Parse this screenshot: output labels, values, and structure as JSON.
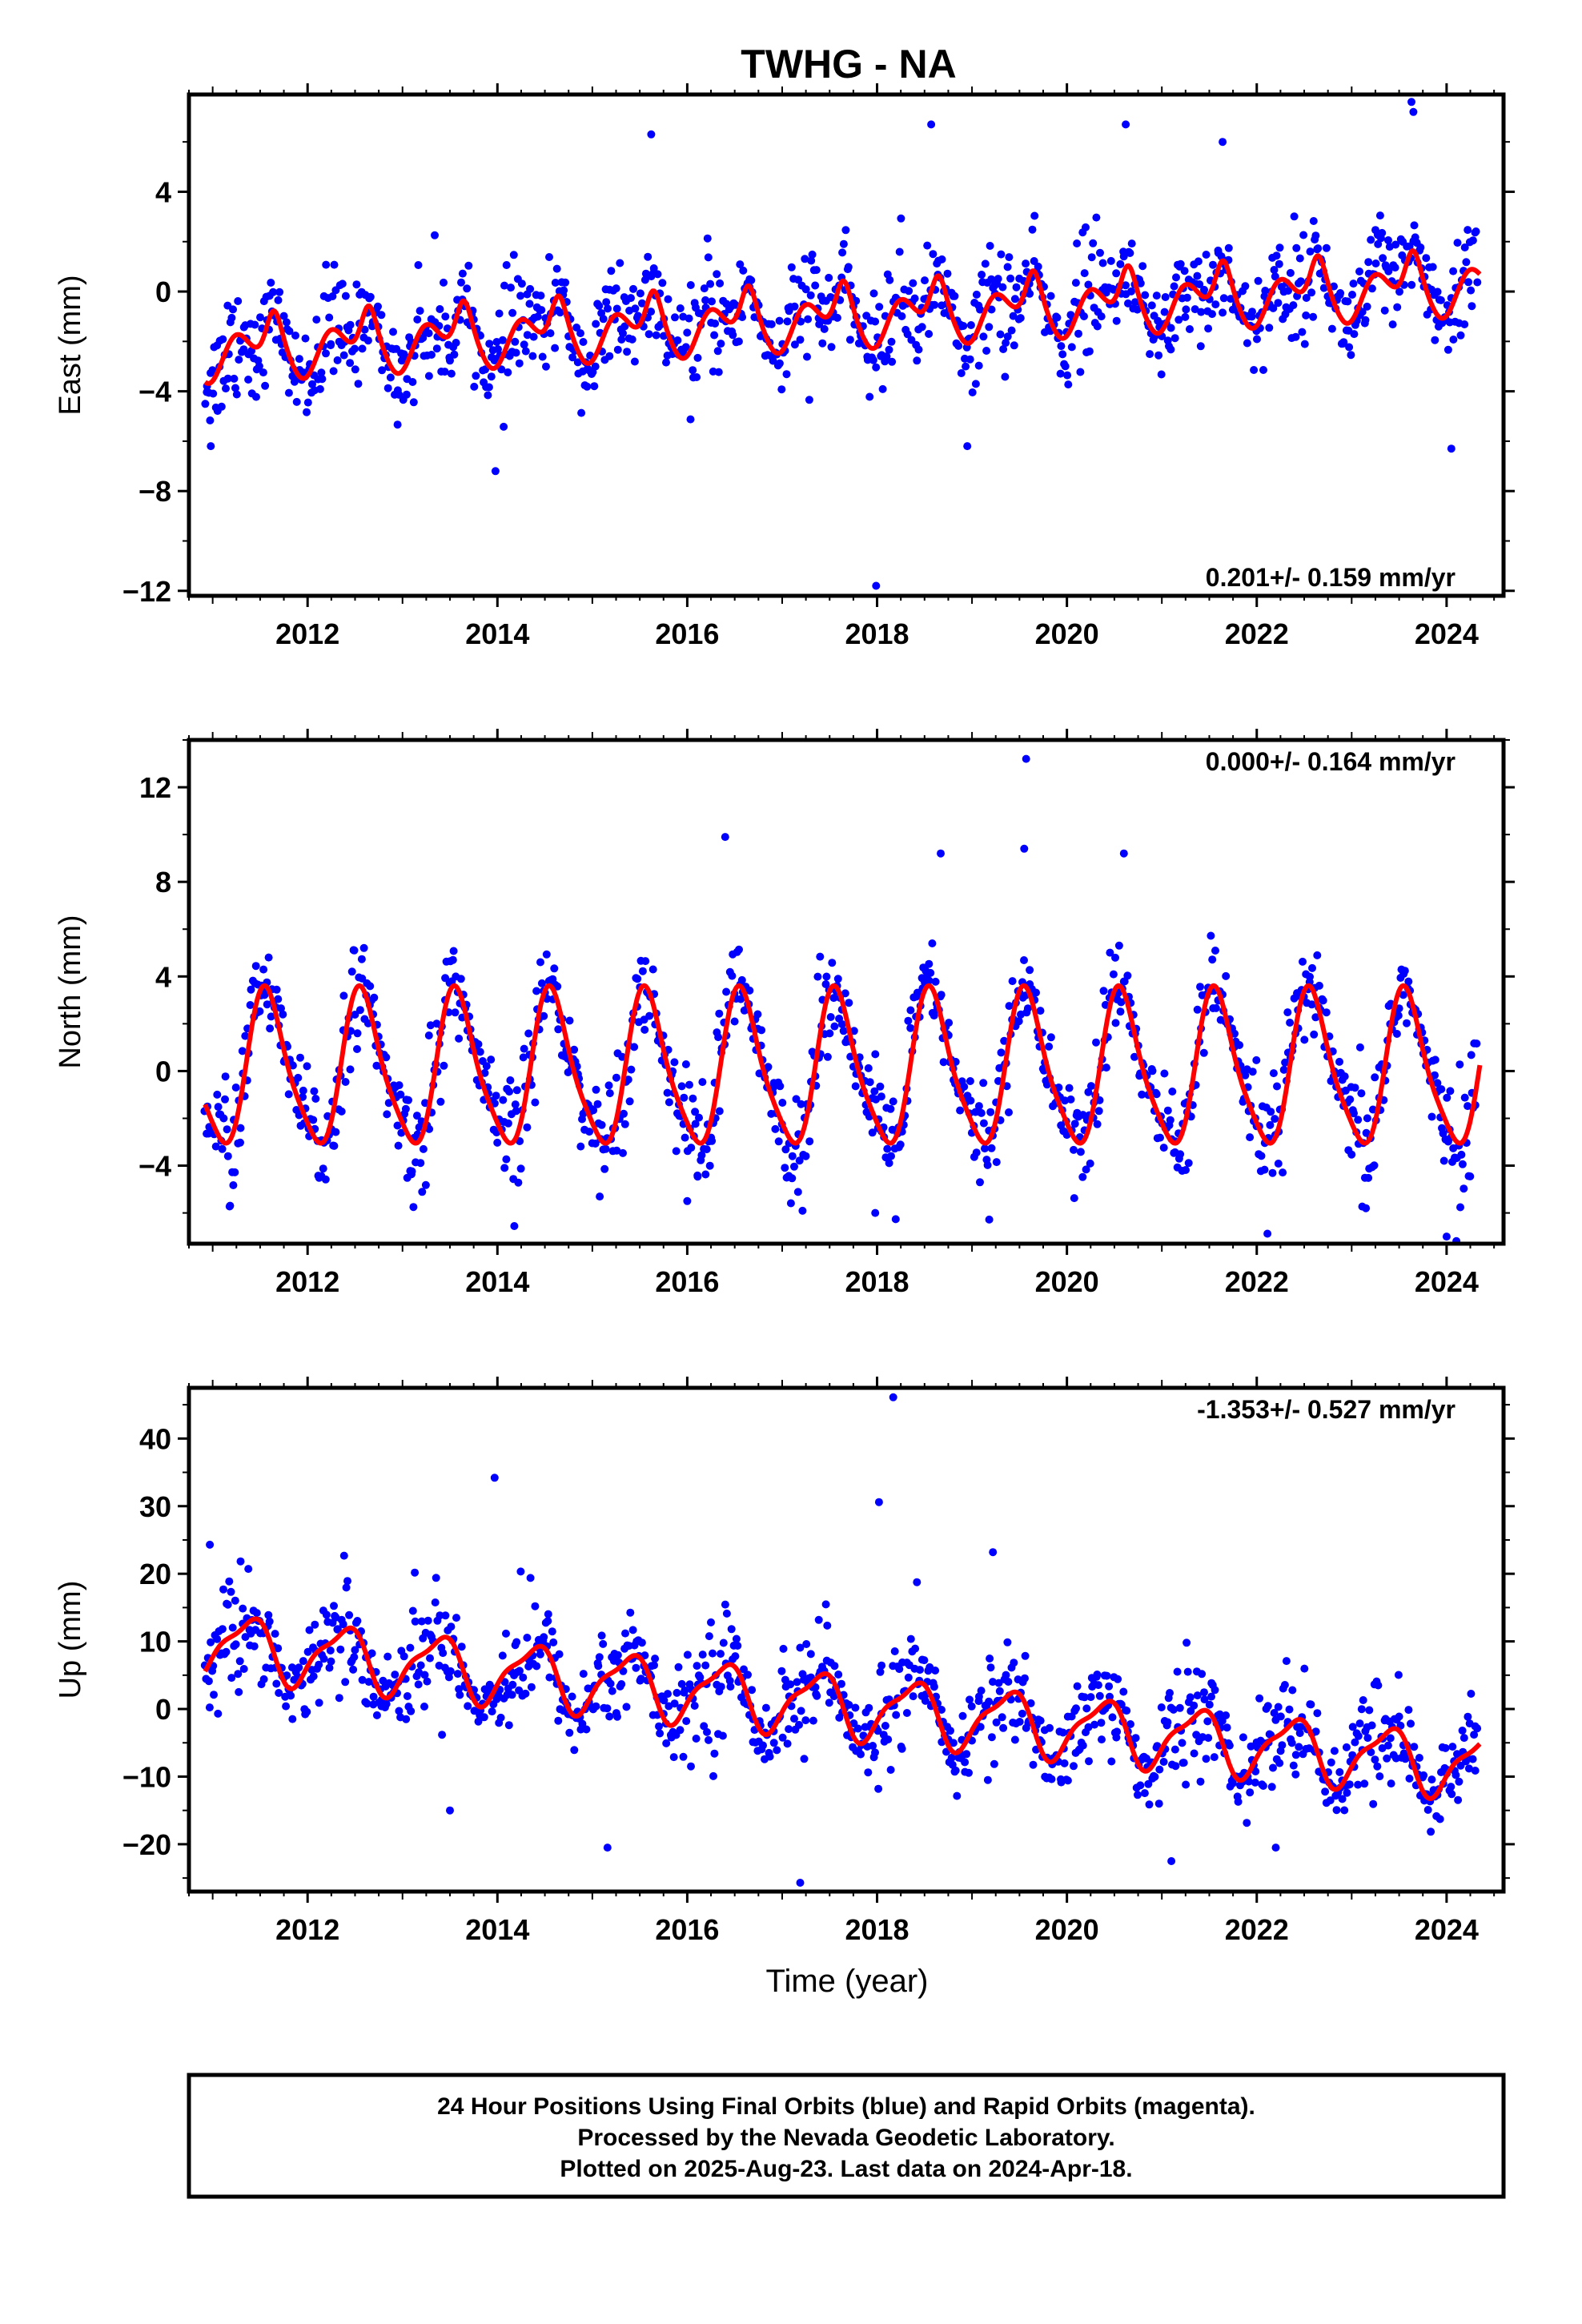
{
  "title": "TWHG - NA",
  "colors": {
    "points": "#0000ff",
    "model": "#ff0000",
    "frame": "#000000"
  },
  "chart_data": [
    {
      "type": "scatter",
      "panel": "east",
      "ylabel": "East (mm)",
      "xlim": [
        2010.75,
        2024.6
      ],
      "ylim": [
        -12.2,
        7.9
      ],
      "yticks": [
        4,
        0,
        -4,
        -8,
        -12
      ],
      "xticks": [
        2012,
        2014,
        2016,
        2018,
        2020,
        2022,
        2024
      ],
      "rate_label": "0.201+/- 0.159 mm/yr",
      "model": {
        "start": 2010.92,
        "end": 2024.35,
        "offset": -2.55,
        "rate": 0.201,
        "annual_cos": -0.6,
        "annual_sin": 0.3,
        "semi_cos": -0.45,
        "semi_sin": 0.2,
        "gap_amp": 1.2,
        "gap_center": 0.64,
        "gap_width": 0.07
      },
      "scatter": {
        "start": 2010.92,
        "end": 2024.32,
        "noise": 1.0,
        "n": 1100,
        "mean_spread": 0.15
      },
      "outliers": [
        {
          "x": 2013.98,
          "y": -7.2
        },
        {
          "x": 2015.62,
          "y": 6.3
        },
        {
          "x": 2017.99,
          "y": -11.8
        },
        {
          "x": 2018.57,
          "y": 6.7
        },
        {
          "x": 2018.95,
          "y": -6.2
        },
        {
          "x": 2020.62,
          "y": 6.7
        },
        {
          "x": 2021.64,
          "y": 6.0
        },
        {
          "x": 2023.63,
          "y": 7.6
        },
        {
          "x": 2023.65,
          "y": 7.2
        },
        {
          "x": 2024.05,
          "y": -6.3
        },
        {
          "x": 2010.98,
          "y": -6.2
        }
      ]
    },
    {
      "type": "scatter",
      "panel": "north",
      "ylabel": "North (mm)",
      "xlim": [
        2010.75,
        2024.6
      ],
      "ylim": [
        -7.3,
        14.0
      ],
      "yticks": [
        12,
        8,
        4,
        0,
        -4
      ],
      "xticks": [
        2012,
        2014,
        2016,
        2018,
        2020,
        2022,
        2024
      ],
      "rate_label": "0.000+/- 0.164 mm/yr",
      "model": {
        "start": 2010.92,
        "end": 2024.35,
        "offset": 0.0,
        "rate": 0.0,
        "annual_cos": -2.8,
        "annual_sin": -1.5,
        "semi_cos": 0.6,
        "semi_sin": 0.0,
        "gap_amp": 0.0,
        "gap_center": 0.5,
        "gap_width": 0.1
      },
      "scatter": {
        "start": 2010.92,
        "end": 2024.32,
        "noise": 1.05,
        "n": 1100,
        "mean_spread": 0.15
      },
      "outliers": [
        {
          "x": 2016.4,
          "y": 9.9
        },
        {
          "x": 2018.67,
          "y": 9.2
        },
        {
          "x": 2019.57,
          "y": 13.2
        },
        {
          "x": 2019.55,
          "y": 9.4
        },
        {
          "x": 2020.6,
          "y": 9.2
        },
        {
          "x": 2017.98,
          "y": -6.0
        },
        {
          "x": 2024.0,
          "y": -7.0
        },
        {
          "x": 2023.15,
          "y": -5.8
        },
        {
          "x": 2016.0,
          "y": -5.5
        }
      ]
    },
    {
      "type": "scatter",
      "panel": "up",
      "ylabel": "Up (mm)",
      "xlabel": "Time (year)",
      "xlim": [
        2010.75,
        2024.6
      ],
      "ylim": [
        -27.0,
        47.5
      ],
      "yticks": [
        40,
        30,
        20,
        10,
        0,
        -10,
        -20
      ],
      "xticks": [
        2012,
        2014,
        2016,
        2018,
        2020,
        2022,
        2024
      ],
      "rate_label": "-1.353+/- 0.527 mm/yr",
      "model": {
        "start": 2010.92,
        "end": 2024.35,
        "offset": 9.6,
        "rate": -1.353,
        "annual_cos": -3.0,
        "annual_sin": 3.2,
        "semi_cos": 1.2,
        "semi_sin": 0.6,
        "gap_amp": 0.0,
        "gap_center": 0.5,
        "gap_width": 0.1
      },
      "scatter": {
        "start": 2010.92,
        "end": 2024.32,
        "noise": 3.6,
        "n": 1100,
        "mean_spread": 0.15
      },
      "outliers": [
        {
          "x": 2013.97,
          "y": 34.2
        },
        {
          "x": 2018.17,
          "y": 46.1
        },
        {
          "x": 2018.02,
          "y": 30.6
        },
        {
          "x": 2019.22,
          "y": 23.2
        },
        {
          "x": 2017.19,
          "y": -25.7
        },
        {
          "x": 2015.16,
          "y": -20.5
        },
        {
          "x": 2013.5,
          "y": -15.0
        },
        {
          "x": 2021.1,
          "y": -22.5
        },
        {
          "x": 2010.97,
          "y": 24.3
        },
        {
          "x": 2022.2,
          "y": -20.5
        }
      ]
    }
  ],
  "footer": {
    "line1": "24 Hour Positions Using Final Orbits (blue) and Rapid Orbits (magenta).",
    "line2": "Processed by the Nevada Geodetic Laboratory.",
    "line3": "Plotted on 2025-Aug-23. Last data on 2024-Apr-18."
  }
}
